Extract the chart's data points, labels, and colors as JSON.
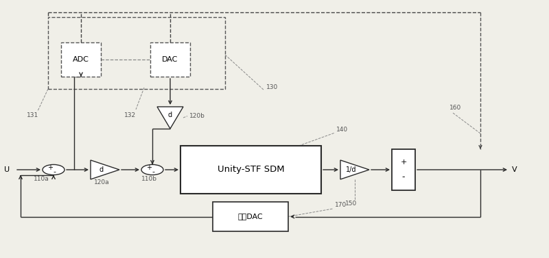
{
  "bg_color": "#f0efe8",
  "line_color": "#2a2a2a",
  "fig_w": 8.0,
  "fig_h": 3.77,
  "dpi": 100,
  "labels": {
    "U": "U",
    "V": "V",
    "ADC": "ADC",
    "DAC": "DAC",
    "d_upper": "d",
    "d_lower": "d",
    "inv_d": "1/d",
    "sdm": "Unity-STF SDM",
    "fbdac": "反馈DAC",
    "110a": "110a",
    "110b": "110b",
    "120a": "120a",
    "120b": "120b",
    "130": "130",
    "131": "131",
    "132": "132",
    "140": "140",
    "150": "150",
    "160": "160",
    "170": "170"
  }
}
